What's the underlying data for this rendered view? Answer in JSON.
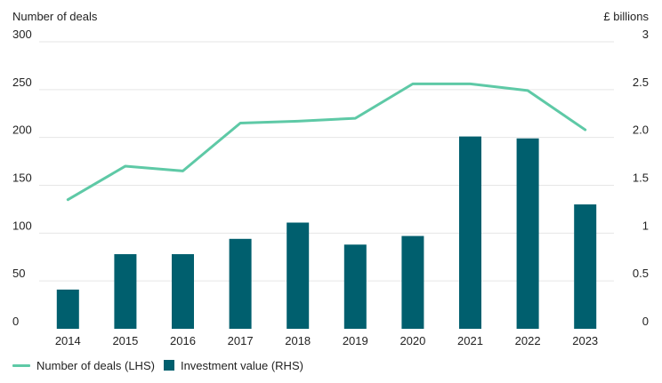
{
  "chart_data": {
    "type": "bar+line",
    "categories": [
      "2014",
      "2015",
      "2016",
      "2017",
      "2018",
      "2019",
      "2020",
      "2021",
      "2022",
      "2023"
    ],
    "left_axis": {
      "title": "Number of deals",
      "range": [
        0,
        300
      ],
      "ticks": [
        0,
        50,
        100,
        150,
        200,
        250,
        300
      ],
      "tick_labels": [
        "0",
        "50",
        "100",
        "150",
        "200",
        "250",
        "300"
      ]
    },
    "right_axis": {
      "title": "£ billions",
      "range": [
        0,
        3
      ],
      "ticks": [
        0,
        0.5,
        1,
        1.5,
        2,
        2.5,
        3
      ],
      "tick_labels": [
        "0",
        "0.5",
        "1",
        "1.5",
        "2.0",
        "2.5",
        "3"
      ]
    },
    "series": [
      {
        "name": "Number of deals (LHS)",
        "kind": "line",
        "axis": "left",
        "color": "#5ec9a6",
        "values": [
          135,
          170,
          165,
          215,
          217,
          220,
          256,
          256,
          249,
          208
        ]
      },
      {
        "name": "Investment value (RHS)",
        "kind": "bar",
        "axis": "right",
        "color": "#005f6e",
        "values": [
          0.41,
          0.78,
          0.78,
          0.94,
          1.11,
          0.88,
          0.97,
          2.01,
          1.99,
          1.3
        ]
      }
    ],
    "grid": true,
    "legend_position": "bottom-left"
  },
  "colors": {
    "grid": "#e6e6e6",
    "text": "#222222"
  }
}
